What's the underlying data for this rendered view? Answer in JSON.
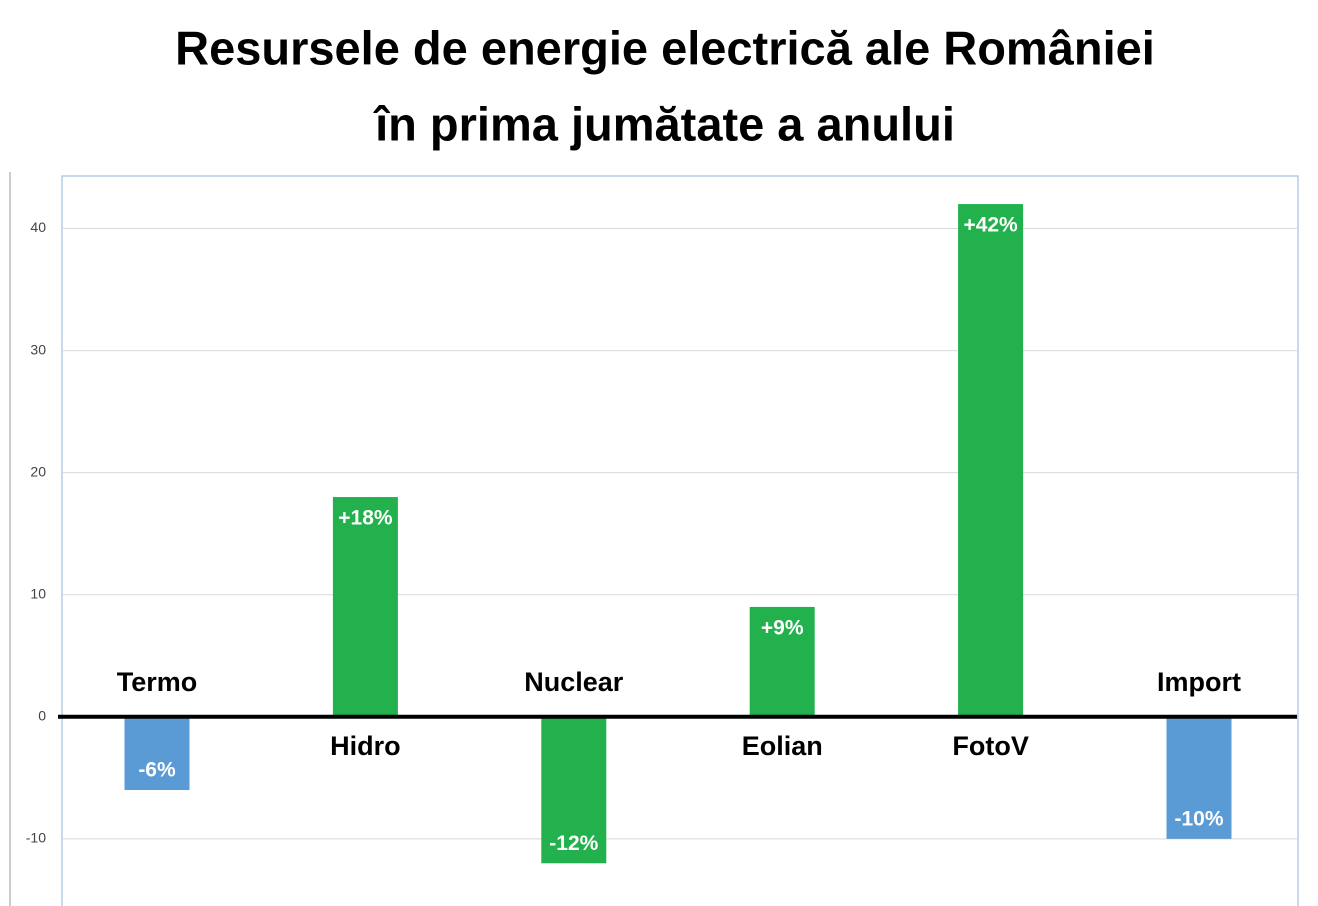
{
  "chart_data": {
    "type": "bar",
    "title": [
      "Resursele de energie electrică ale României",
      "în prima jumătate a anului"
    ],
    "categories": [
      "Termo",
      "Hidro",
      "Nuclear",
      "Eolian",
      "FotoV",
      "Import"
    ],
    "values": [
      -6,
      18,
      -12,
      9,
      42,
      -10
    ],
    "value_labels": [
      "-6%",
      "+18%",
      "-12%",
      "+9%",
      "+42%",
      "-10%"
    ],
    "colors": [
      "#5b9bd5",
      "#22b14c",
      "#22b14c",
      "#22b14c",
      "#22b14c",
      "#5b9bd5"
    ],
    "ylim": [
      -15.5,
      44.3
    ],
    "yticks": [
      -10,
      0,
      10,
      20,
      30,
      40
    ],
    "grid": true
  }
}
